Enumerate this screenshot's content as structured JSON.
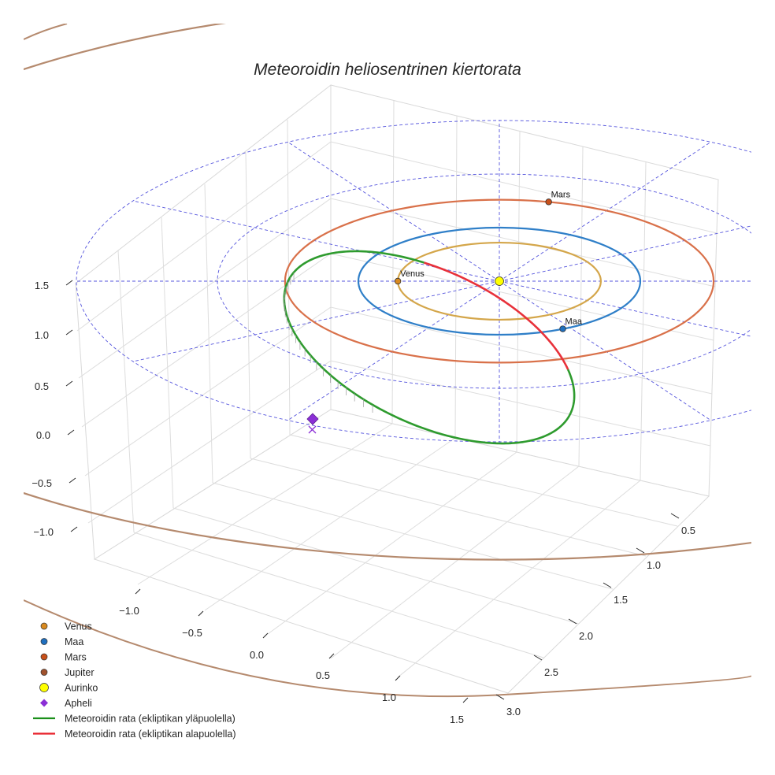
{
  "chart_data": {
    "type": "line",
    "title": "Meteoroidin heliosentrinen kiertorata",
    "view": "3d-perspective",
    "grid": true,
    "legend_position": "bottom-left",
    "axes": {
      "x_ticks": [
        "−1.0",
        "−0.5",
        "0.0",
        "0.5",
        "1.0",
        "1.5"
      ],
      "y_ticks": [
        "0.5",
        "1.0",
        "1.5",
        "2.0",
        "2.5",
        "3.0"
      ],
      "z_ticks": [
        "1.5",
        "1.0",
        "0.5",
        "0.0",
        "−0.5",
        "−1.0"
      ]
    },
    "ecliptic_guides": {
      "radii_au": [
        1,
        2,
        3
      ],
      "radial_lines": 12,
      "color": "#5555dd"
    },
    "orbits": [
      {
        "name": "Venus",
        "radius_au": 0.72,
        "color": "#d4a64a"
      },
      {
        "name": "Maa",
        "radius_au": 1.0,
        "color": "#2f7fc8"
      },
      {
        "name": "Mars",
        "radius_au": 1.52,
        "color": "#d9714a"
      },
      {
        "name": "Jupiter",
        "radius_au": 5.2,
        "color": "#b58a6e"
      }
    ],
    "bodies": [
      {
        "name": "Venus",
        "x_au": -0.72,
        "y_au": 0.0,
        "color": "#d98a1f"
      },
      {
        "name": "Maa",
        "x_au": 0.45,
        "y_au": -0.89,
        "color": "#1f6fbf"
      },
      {
        "name": "Mars",
        "x_au": 0.35,
        "y_au": 1.48,
        "color": "#c8501a"
      },
      {
        "name": "Aurinko",
        "x_au": 0.0,
        "y_au": 0.0,
        "color": "#ffff00"
      }
    ],
    "meteoroid": {
      "above_ecliptic_color": "#2e9b2e",
      "below_ecliptic_color": "#e8313a",
      "aphelion_color": "#8b2fd6"
    },
    "legend": [
      {
        "label": "Venus",
        "marker": "circle",
        "color": "#d98a1f"
      },
      {
        "label": "Maa",
        "marker": "circle",
        "color": "#1f6fbf"
      },
      {
        "label": "Mars",
        "marker": "circle",
        "color": "#c8501a"
      },
      {
        "label": "Jupiter",
        "marker": "circle",
        "color": "#a0522d"
      },
      {
        "label": "Aurinko",
        "marker": "circle-large",
        "color": "#ffff00"
      },
      {
        "label": "Apheli",
        "marker": "diamond",
        "color": "#8b2fd6"
      },
      {
        "label": "Meteoroidin rata (ekliptikan yläpuolella)",
        "marker": "line",
        "color": "#1a8f1a"
      },
      {
        "label": "Meteoroidin rata (ekliptikan alapuolella)",
        "marker": "line",
        "color": "#e8202a"
      }
    ]
  }
}
